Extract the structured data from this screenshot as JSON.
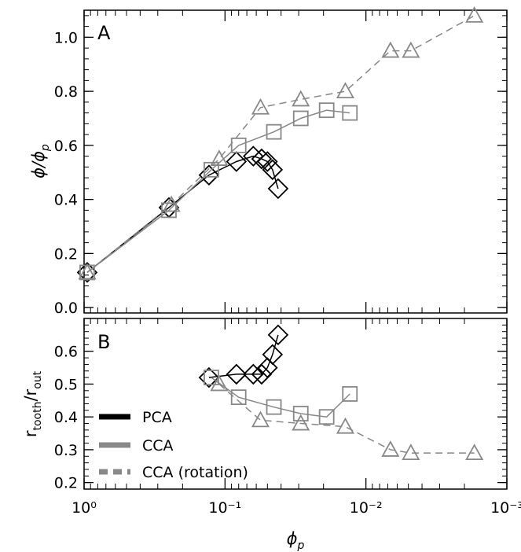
{
  "chart_data": [
    {
      "panel": "A",
      "type": "line",
      "x_scale": "log",
      "x_reversed": true,
      "xlim": [
        1.0,
        0.001
      ],
      "ylim": [
        -0.02,
        1.1
      ],
      "x_ticks": [
        1.0,
        0.1,
        0.01,
        0.001
      ],
      "x_tick_labels": [
        "10⁰",
        "10⁻¹",
        "10⁻²",
        "10⁻³"
      ],
      "y_ticks": [
        0.0,
        0.2,
        0.4,
        0.6,
        0.8,
        1.0
      ],
      "y_tick_labels": [
        "0.0",
        "0.2",
        "0.4",
        "0.6",
        "0.8",
        "1.0"
      ],
      "ylabel_main": "ϕ/ϕ",
      "ylabel_sub": "p",
      "series": [
        {
          "name": "PCA",
          "marker": "diamond",
          "color": "#000000",
          "dash": "solid",
          "x": [
            0.95,
            0.25,
            0.13,
            0.083,
            0.063,
            0.055,
            0.05,
            0.046,
            0.042
          ],
          "y": [
            0.13,
            0.37,
            0.49,
            0.54,
            0.56,
            0.55,
            0.54,
            0.51,
            0.44
          ]
        },
        {
          "name": "CCA",
          "marker": "square",
          "color": "#888888",
          "dash": "solid",
          "x": [
            0.95,
            0.25,
            0.125,
            0.08,
            0.045,
            0.029,
            0.019,
            0.013
          ],
          "y": [
            0.13,
            0.36,
            0.51,
            0.6,
            0.65,
            0.7,
            0.73,
            0.72
          ]
        },
        {
          "name": "CCA (rotation)",
          "marker": "triangle",
          "color": "#888888",
          "dash": "dashed",
          "x": [
            0.95,
            0.24,
            0.11,
            0.056,
            0.029,
            0.014,
            0.0067,
            0.0048,
            0.0017
          ],
          "y": [
            0.13,
            0.38,
            0.55,
            0.74,
            0.77,
            0.8,
            0.95,
            0.95,
            1.08
          ]
        }
      ]
    },
    {
      "panel": "B",
      "type": "line",
      "x_scale": "log",
      "x_reversed": true,
      "xlim": [
        1.0,
        0.001
      ],
      "ylim": [
        0.18,
        0.7
      ],
      "x_ticks": [
        1.0,
        0.1,
        0.01,
        0.001
      ],
      "x_tick_labels": [
        "10⁰",
        "10⁻¹",
        "10⁻²",
        "10⁻³"
      ],
      "y_ticks": [
        0.2,
        0.3,
        0.4,
        0.5,
        0.6
      ],
      "y_tick_labels": [
        "0.2",
        "0.3",
        "0.4",
        "0.5",
        "0.6"
      ],
      "ylabel_num": "r",
      "ylabel_num_sub": "tooth",
      "ylabel_den": "r",
      "ylabel_den_sub": "out",
      "xlabel_main": "ϕ",
      "xlabel_sub": "p",
      "legend": {
        "placement": "bottom-left",
        "entries": [
          {
            "label": "PCA",
            "color": "#000000",
            "dash": "solid"
          },
          {
            "label": "CCA",
            "color": "#888888",
            "dash": "solid"
          },
          {
            "label": "CCA (rotation)",
            "color": "#888888",
            "dash": "dashed"
          }
        ]
      },
      "series": [
        {
          "name": "PCA",
          "marker": "diamond",
          "color": "#000000",
          "dash": "solid",
          "x": [
            0.13,
            0.083,
            0.063,
            0.055,
            0.05,
            0.046,
            0.042
          ],
          "y": [
            0.52,
            0.53,
            0.53,
            0.53,
            0.55,
            0.59,
            0.65
          ]
        },
        {
          "name": "CCA",
          "marker": "square",
          "color": "#888888",
          "dash": "solid",
          "x": [
            0.125,
            0.08,
            0.045,
            0.029,
            0.019,
            0.013
          ],
          "y": [
            0.52,
            0.46,
            0.43,
            0.41,
            0.4,
            0.47
          ]
        },
        {
          "name": "CCA (rotation)",
          "marker": "triangle",
          "color": "#888888",
          "dash": "dashed",
          "x": [
            0.11,
            0.056,
            0.029,
            0.014,
            0.0067,
            0.0048,
            0.0017
          ],
          "y": [
            0.5,
            0.39,
            0.38,
            0.37,
            0.3,
            0.29,
            0.29
          ]
        }
      ]
    }
  ]
}
